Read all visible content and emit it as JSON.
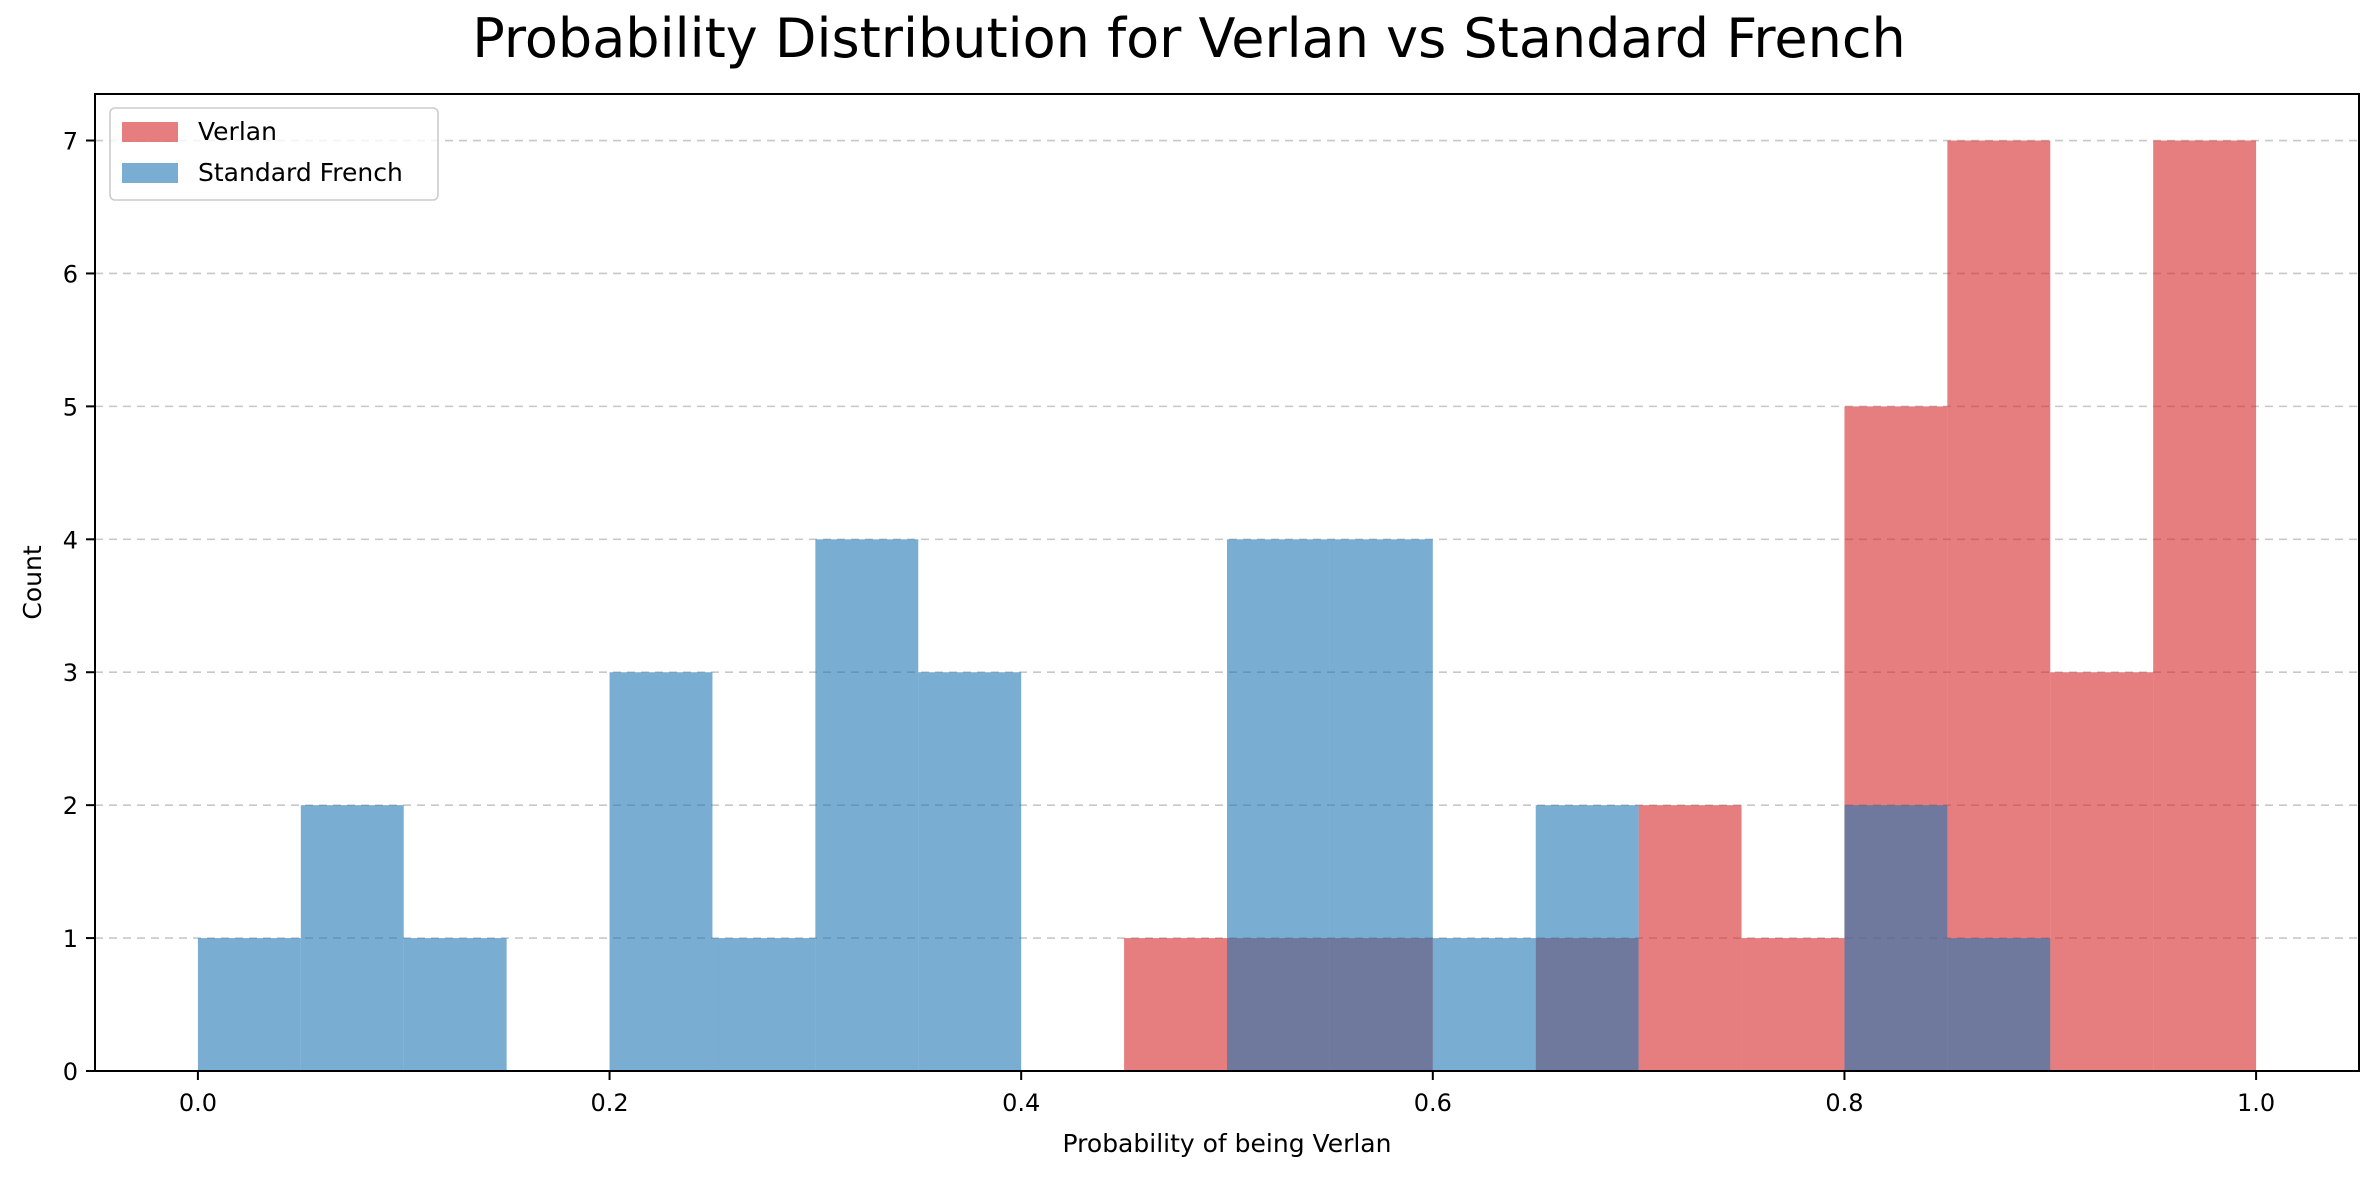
{
  "chart_data": {
    "type": "bar",
    "subtype": "overlaid-histogram",
    "title": "Probability Distribution for Verlan vs Standard French",
    "xlabel": "Probability of being Verlan",
    "ylabel": "Count",
    "xlim": [
      -0.05,
      1.05
    ],
    "ylim": [
      0,
      7.35
    ],
    "xticks": [
      0.0,
      0.2,
      0.4,
      0.6,
      0.8,
      1.0
    ],
    "xtick_labels": [
      "0.0",
      "0.2",
      "0.4",
      "0.6",
      "0.8",
      "1.0"
    ],
    "yticks": [
      0,
      1,
      2,
      3,
      4,
      5,
      6,
      7
    ],
    "ytick_labels": [
      "0",
      "1",
      "2",
      "3",
      "4",
      "5",
      "6",
      "7"
    ],
    "grid": {
      "axis": "y",
      "style": "dashed"
    },
    "legend": {
      "position": "top-left"
    },
    "bin_edges": [
      0.0,
      0.05,
      0.1,
      0.15,
      0.2,
      0.25,
      0.3,
      0.35,
      0.4,
      0.45,
      0.5,
      0.55,
      0.6,
      0.65,
      0.7,
      0.75,
      0.8,
      0.85,
      0.9,
      0.95,
      1.0
    ],
    "series": [
      {
        "name": "Verlan",
        "color": "#d62728",
        "opacity": 0.6,
        "values": [
          0,
          0,
          0,
          0,
          0,
          0,
          0,
          0,
          0,
          1,
          1,
          1,
          0,
          1,
          2,
          1,
          5,
          7,
          3,
          7
        ]
      },
      {
        "name": "Standard French",
        "color": "#1f77b4",
        "opacity": 0.6,
        "values": [
          1,
          2,
          1,
          0,
          3,
          1,
          4,
          3,
          0,
          0,
          4,
          4,
          1,
          2,
          0,
          0,
          2,
          1,
          0,
          0
        ]
      }
    ]
  }
}
